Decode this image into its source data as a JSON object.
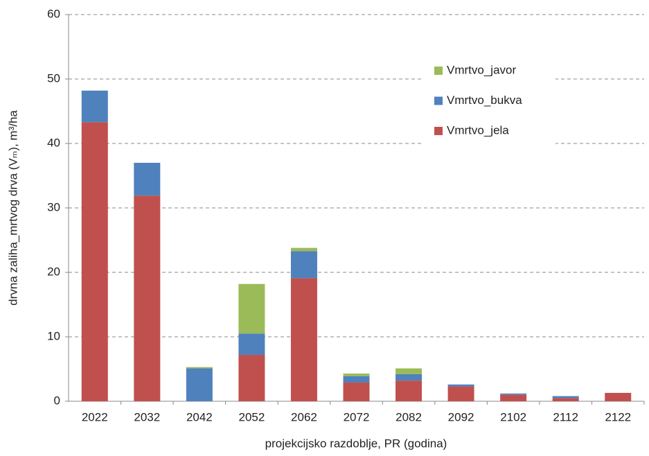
{
  "chart_data": {
    "type": "stacked_bar",
    "x_label": "projekcijsko razdoblje, PR (godina)",
    "y_label": "drvna zaliha_mrtvog drva (Vₘ), m³/ha",
    "categories": [
      "2022",
      "2032",
      "2042",
      "2052",
      "2062",
      "2072",
      "2082",
      "2092",
      "2102",
      "2112",
      "2122"
    ],
    "series": [
      {
        "name": "Vmrtvo_jela",
        "color": "#c0504d",
        "values": [
          43.3,
          31.9,
          0,
          7.2,
          19.1,
          2.9,
          3.2,
          2.3,
          1.0,
          0.5,
          1.3
        ]
      },
      {
        "name": "Vmrtvo_bukva",
        "color": "#4f81bd",
        "values": [
          4.9,
          5.1,
          5.1,
          3.3,
          4.2,
          1.0,
          1.0,
          0.3,
          0.2,
          0.3,
          0
        ]
      },
      {
        "name": "Vmrtvo_javor",
        "color": "#9bbb59",
        "values": [
          0,
          0,
          0.2,
          7.7,
          0.5,
          0.4,
          0.9,
          0,
          0,
          0,
          0
        ]
      }
    ],
    "ylim": [
      0,
      60
    ],
    "yticks": [
      0,
      10,
      20,
      30,
      40,
      50,
      60
    ],
    "grid": true,
    "legend": "top-right"
  }
}
